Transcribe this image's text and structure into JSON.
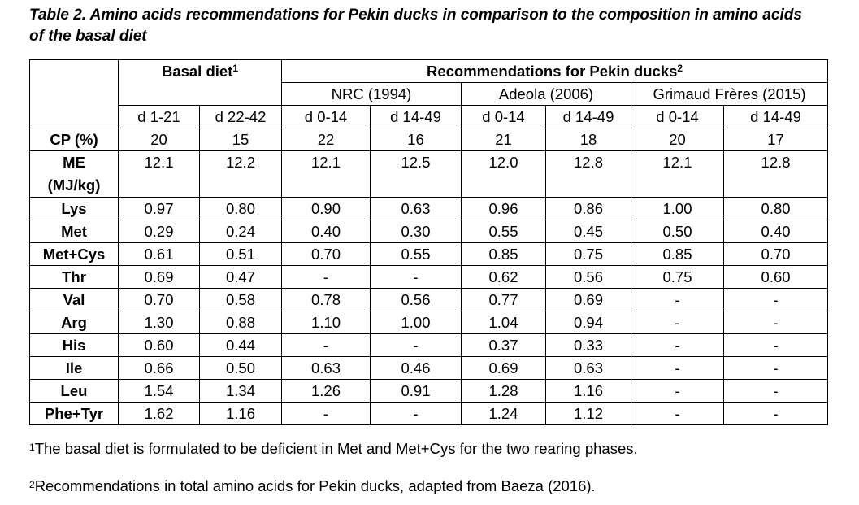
{
  "caption": {
    "line1": "Table 2. Amino acids recommendations for Pekin ducks in comparison to the composition in amino acids",
    "line2": "of the basal diet"
  },
  "header": {
    "basal_diet": "Basal diet",
    "basal_diet_sup": "1",
    "recommendations": "Recommendations for Pekin ducks",
    "recommendations_sup": "2",
    "sources": [
      "NRC (1994)",
      "Adeola (2006)",
      "Grimaud Frères (2015)"
    ],
    "periods": [
      "d 1-21",
      "d 22-42",
      "d 0-14",
      "d 14-49",
      "d 0-14",
      "d 14-49",
      "d 0-14",
      "d 14-49"
    ]
  },
  "rows": [
    {
      "label": "CP (%)",
      "values": [
        "20",
        "15",
        "22",
        "16",
        "21",
        "18",
        "20",
        "17"
      ]
    },
    {
      "label": "ME",
      "label2": "(MJ/kg)",
      "values": [
        "12.1",
        "12.2",
        "12.1",
        "12.5",
        "12.0",
        "12.8",
        "12.1",
        "12.8"
      ]
    },
    {
      "label": "Lys",
      "values": [
        "0.97",
        "0.80",
        "0.90",
        "0.63",
        "0.96",
        "0.86",
        "1.00",
        "0.80"
      ]
    },
    {
      "label": "Met",
      "values": [
        "0.29",
        "0.24",
        "0.40",
        "0.30",
        "0.55",
        "0.45",
        "0.50",
        "0.40"
      ]
    },
    {
      "label": "Met+Cys",
      "values": [
        "0.61",
        "0.51",
        "0.70",
        "0.55",
        "0.85",
        "0.75",
        "0.85",
        "0.70"
      ]
    },
    {
      "label": "Thr",
      "values": [
        "0.69",
        "0.47",
        "-",
        "-",
        "0.62",
        "0.56",
        "0.75",
        "0.60"
      ]
    },
    {
      "label": "Val",
      "values": [
        "0.70",
        "0.58",
        "0.78",
        "0.56",
        "0.77",
        "0.69",
        "-",
        "-"
      ]
    },
    {
      "label": "Arg",
      "values": [
        "1.30",
        "0.88",
        "1.10",
        "1.00",
        "1.04",
        "0.94",
        "-",
        "-"
      ]
    },
    {
      "label": "His",
      "values": [
        "0.60",
        "0.44",
        "-",
        "-",
        "0.37",
        "0.33",
        "-",
        "-"
      ]
    },
    {
      "label": "Ile",
      "values": [
        "0.66",
        "0.50",
        "0.63",
        "0.46",
        "0.69",
        "0.63",
        "-",
        "-"
      ]
    },
    {
      "label": "Leu",
      "values": [
        "1.54",
        "1.34",
        "1.26",
        "0.91",
        "1.28",
        "1.16",
        "-",
        "-"
      ]
    },
    {
      "label": "Phe+Tyr",
      "values": [
        "1.62",
        "1.16",
        "-",
        "-",
        "1.24",
        "1.12",
        "-",
        "-"
      ]
    }
  ],
  "footnotes": [
    {
      "mark": "1",
      "text": "The basal diet is formulated to be deficient in Met and Met+Cys for the two rearing phases."
    },
    {
      "mark": "2",
      "text": "Recommendations in total amino acids for Pekin ducks, adapted from Baeza (2016)."
    }
  ]
}
